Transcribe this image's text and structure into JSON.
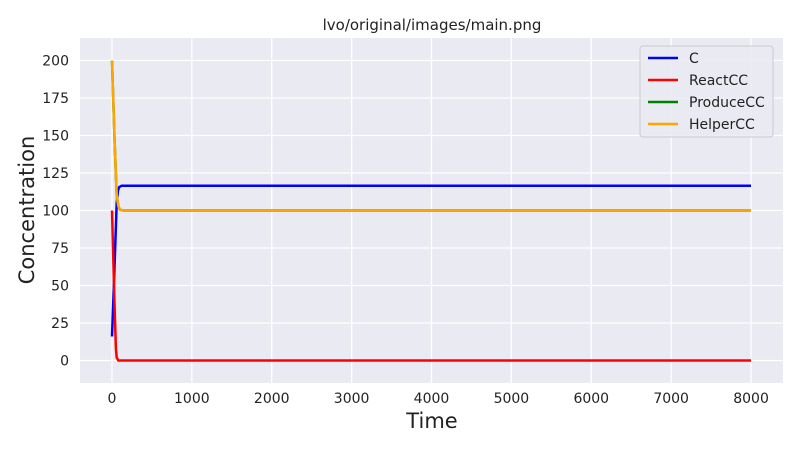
{
  "chart_data": {
    "type": "line",
    "title": "lvo/original/images/main.png",
    "xlabel": "Time",
    "ylabel": "Concentration",
    "xlim": [
      -400,
      8400
    ],
    "ylim": [
      -15,
      215
    ],
    "xticks": [
      0,
      1000,
      2000,
      3000,
      4000,
      5000,
      6000,
      7000,
      8000
    ],
    "yticks": [
      0,
      25,
      50,
      75,
      100,
      125,
      150,
      175,
      200
    ],
    "grid": true,
    "legend_position": "top-right",
    "background": "#eaeaf2",
    "series": [
      {
        "name": "C",
        "color": "#0000ff",
        "x": [
          0,
          30,
          60,
          75,
          90,
          120,
          8000
        ],
        "y": [
          16,
          60,
          105,
          113,
          115.5,
          116.5,
          116.5
        ]
      },
      {
        "name": "ReactCC",
        "color": "#ff0000",
        "x": [
          0,
          30,
          50,
          60,
          80,
          150,
          8000
        ],
        "y": [
          100,
          40,
          8,
          2,
          0,
          0,
          0
        ]
      },
      {
        "name": "ProduceCC",
        "color": "#008000",
        "x": [
          0,
          30,
          60,
          80,
          100,
          150,
          8000
        ],
        "y": [
          200,
          150,
          110,
          103,
          100.5,
          100,
          100
        ]
      },
      {
        "name": "HelperCC",
        "color": "#ffa500",
        "x": [
          0,
          30,
          60,
          80,
          100,
          150,
          8000
        ],
        "y": [
          200,
          150,
          110,
          103,
          100.5,
          100,
          100
        ]
      }
    ]
  }
}
